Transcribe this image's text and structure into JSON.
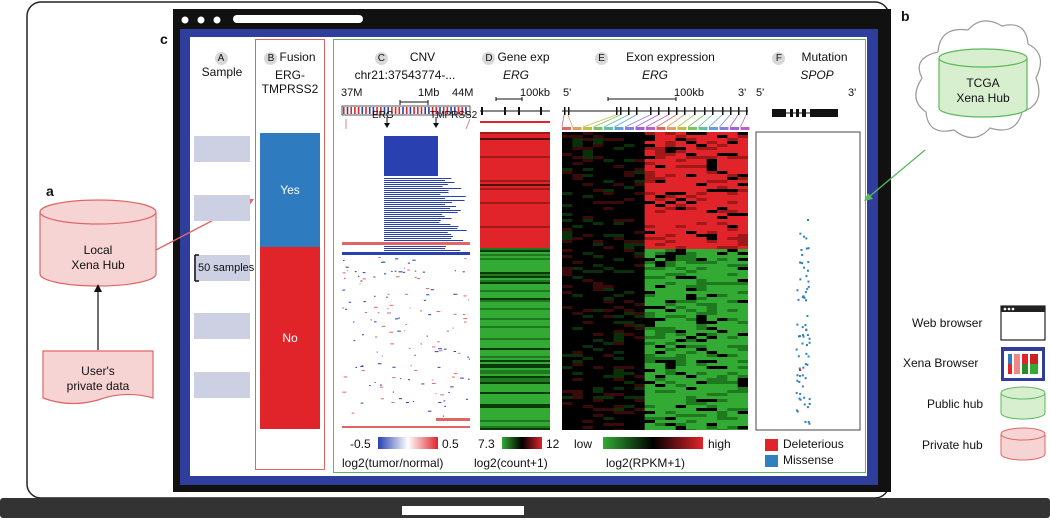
{
  "panel_letters": {
    "a": "a",
    "b": "b",
    "c": "c"
  },
  "local_hub": {
    "line1": "Local",
    "line2": "Xena Hub"
  },
  "private_data": {
    "line1": "User's",
    "line2": "private data"
  },
  "tcga_hub": {
    "line1": "TCGA",
    "line2": "Xena Hub"
  },
  "columns": {
    "sample": {
      "letter": "A",
      "title": "Sample",
      "scale_label": "50 samples"
    },
    "fusion": {
      "letter": "B",
      "title": "Fusion",
      "subtitle": "ERG-\nTMPRSS2",
      "yes": "Yes",
      "no": "No"
    },
    "cnv": {
      "letter": "C",
      "title": "CNV",
      "subtitle": "chr21:37543774-...",
      "pos_left": "37M",
      "pos_scale": "1Mb",
      "pos_right": "44M",
      "gene1": "ERG",
      "gene2": "TMPRSS2",
      "legend_min": "-0.5",
      "legend_max": "0.5",
      "legend_title": "log2(tumor/normal)"
    },
    "gene_exp": {
      "letter": "D",
      "title": "Gene exp",
      "subtitle": "ERG",
      "scale": "100kb",
      "legend_min": "7.3",
      "legend_max": "12",
      "legend_title": "log2(count+1)"
    },
    "exon_exp": {
      "letter": "E",
      "title": "Exon expression",
      "subtitle": "ERG",
      "five": "5'",
      "three": "3'",
      "scale": "100kb",
      "legend_min": "low",
      "legend_max": "high",
      "legend_title": "log2(RPKM+1)"
    },
    "mutation": {
      "letter": "F",
      "title": "Mutation",
      "subtitle": "SPOP",
      "five": "5'",
      "three": "3'",
      "legend_items": [
        {
          "label": "Deleterious",
          "color": "#e0242a"
        },
        {
          "label": "Missense",
          "color": "#2f7fc1"
        }
      ]
    }
  },
  "key": {
    "items": [
      "Web browser",
      "Xena Browser",
      "Public hub",
      "Private hub"
    ]
  },
  "colors": {
    "frame_blue": "#2f3d9c",
    "hub_red": "#e06666",
    "hub_green": "#5cb85c",
    "fusion_yes": "#2e7cbf",
    "fusion_no": "#e0242a"
  }
}
